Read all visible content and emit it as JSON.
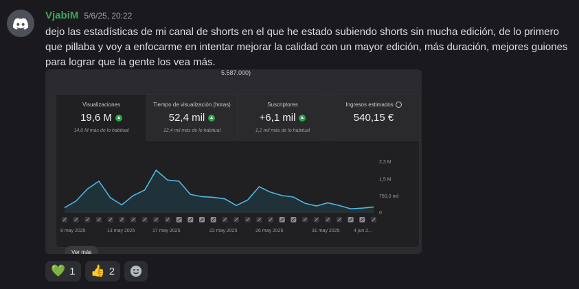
{
  "message": {
    "author": "VjabiM",
    "timestamp": "5/6/25, 20:22",
    "text": "dejo las estadísticas de mi canal de shorts en el que he estado subiendo shorts sin mucha edición, de lo primero que pillaba y voy a enfocarme en intentar mejorar la calidad con un mayor edición, más duración, mejores guiones para lograr que la gente los vea más."
  },
  "embed": {
    "caption": "5.587.000)",
    "tabs": [
      {
        "label": "Visualizaciones",
        "value": "19,6 M",
        "sub": "14,0 M más de lo habitual",
        "icon": "up-arrow-icon"
      },
      {
        "label": "Tiempo de visualización (horas)",
        "value": "52,4 mil",
        "sub": "12,4 mil más de lo habitual",
        "icon": "up-arrow-icon"
      },
      {
        "label": "Suscriptores",
        "value": "+6,1 mil",
        "sub": "1,2 mil más de lo habitual",
        "icon": "up-arrow-icon"
      },
      {
        "label": "Ingresos estimados",
        "value": "540,15 €",
        "sub": "",
        "icon": "clock-icon"
      }
    ],
    "ver_mas": "Ver más"
  },
  "chart_data": {
    "type": "area",
    "x_labels": [
      "8 may 2025",
      "13 may 2025",
      "17 may 2025",
      "22 may 2025",
      "26 may 2025",
      "31 may 2025",
      "4 jun 2..."
    ],
    "y_ticks": [
      "2,3 M",
      "1,5 M",
      "750,0 mil",
      "0"
    ],
    "y_tick_values": [
      2300000,
      1500000,
      750000,
      0
    ],
    "ylim": [
      0,
      2300000
    ],
    "values": [
      200000,
      500000,
      1050000,
      1400000,
      650000,
      330000,
      750000,
      1000000,
      1900000,
      1450000,
      1400000,
      800000,
      700000,
      670000,
      600000,
      300000,
      550000,
      1150000,
      900000,
      750000,
      680000,
      400000,
      280000,
      420000,
      300000,
      150000,
      180000,
      230000
    ],
    "color": "#4fb7e4",
    "marker_count": 28
  },
  "reactions": [
    {
      "emoji": "💚",
      "count": "1",
      "icon": "green-heart-icon"
    },
    {
      "emoji": "👍",
      "count": "2",
      "icon": "thumbs-up-icon"
    }
  ]
}
